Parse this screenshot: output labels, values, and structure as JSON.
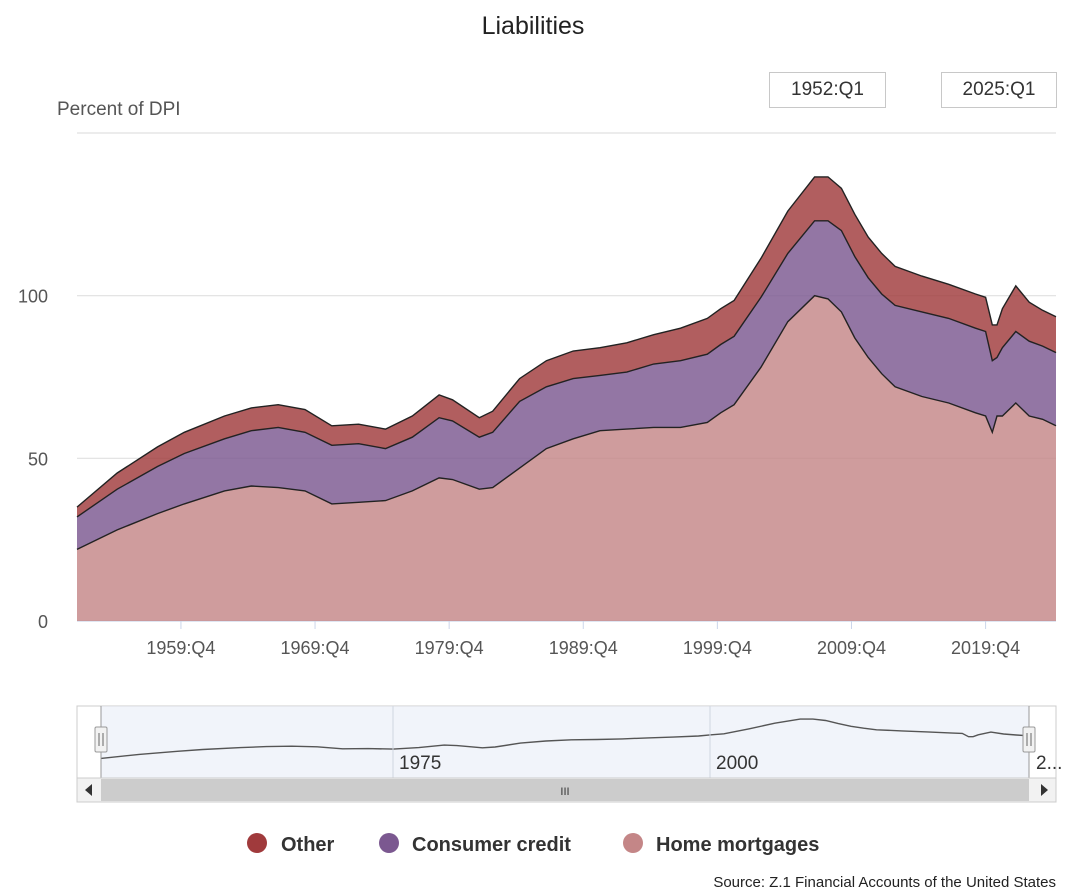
{
  "chart_data": {
    "type": "area",
    "stacked": true,
    "title": "Liabilities",
    "ylabel": "Percent of DPI",
    "ylim": [
      0,
      150
    ],
    "yticks": [
      0,
      50,
      100
    ],
    "grid": true,
    "x_range": [
      1952.0,
      2025.0
    ],
    "xticks": [
      {
        "value": 1959.75,
        "label": "1959:Q4"
      },
      {
        "value": 1969.75,
        "label": "1969:Q4"
      },
      {
        "value": 1979.75,
        "label": "1979:Q4"
      },
      {
        "value": 1989.75,
        "label": "1989:Q4"
      },
      {
        "value": 1999.75,
        "label": "1999:Q4"
      },
      {
        "value": 2009.75,
        "label": "2009:Q4"
      },
      {
        "value": 2019.75,
        "label": "2019:Q4"
      }
    ],
    "x": [
      1952,
      1955,
      1958,
      1960,
      1963,
      1965,
      1967,
      1969,
      1971,
      1973,
      1975,
      1977,
      1979,
      1980,
      1982,
      1983,
      1985,
      1987,
      1989,
      1991,
      1993,
      1995,
      1997,
      1999,
      2000,
      2001,
      2003,
      2005,
      2007,
      2008,
      2009,
      2010,
      2011,
      2012,
      2013,
      2015,
      2017,
      2019,
      2019.75,
      2020.25,
      2020.6,
      2021,
      2022,
      2023,
      2024,
      2025
    ],
    "series": [
      {
        "name": "Home mortgages",
        "color": "#c48687",
        "values": [
          22,
          28,
          33,
          36,
          40,
          41.5,
          41,
          40,
          36,
          36.5,
          37,
          40,
          44,
          43.5,
          40.5,
          41,
          47,
          53,
          56,
          58.5,
          59,
          59.5,
          59.5,
          61,
          64,
          66.5,
          78,
          92,
          100,
          99,
          95,
          87,
          81,
          76,
          72,
          69,
          67,
          64,
          63,
          58,
          63,
          63,
          67,
          63,
          62,
          60
        ]
      },
      {
        "name": "Consumer credit",
        "color": "#7b5890",
        "values": [
          10,
          12.5,
          14.5,
          15.5,
          16,
          17,
          18.5,
          18,
          18,
          18,
          16,
          16.5,
          18.5,
          18,
          16,
          17,
          20.5,
          19,
          18.5,
          17,
          17.5,
          19.5,
          20.5,
          21,
          21,
          21,
          21.5,
          21,
          23,
          24,
          25,
          25,
          24.5,
          24.5,
          25,
          26,
          26,
          26,
          26,
          22,
          18,
          21,
          22,
          23,
          22.5,
          22.5
        ]
      },
      {
        "name": "Other",
        "color": "#a03a3c",
        "values": [
          3,
          5,
          6,
          6.5,
          7,
          7,
          7,
          7,
          6,
          6,
          6,
          6.5,
          7,
          6.5,
          6,
          6.5,
          7,
          8,
          8.5,
          8.5,
          9,
          9,
          10,
          11,
          11,
          11,
          12,
          13,
          13.5,
          13.5,
          13,
          13,
          12.5,
          12.5,
          12,
          11,
          10.5,
          10.5,
          10.5,
          11,
          10,
          12,
          14,
          12,
          11,
          11
        ]
      }
    ],
    "legend": [
      "Other",
      "Consumer credit",
      "Home mortgages"
    ],
    "legend_position": "bottom-center",
    "navigator": {
      "labels": [
        "1975",
        "2000",
        "2..."
      ]
    },
    "range_selector": {
      "from": "1952:Q1",
      "to": "2025:Q1"
    },
    "scrollbar_grip": "III",
    "source": "Source: Z.1 Financial Accounts of the United States"
  }
}
